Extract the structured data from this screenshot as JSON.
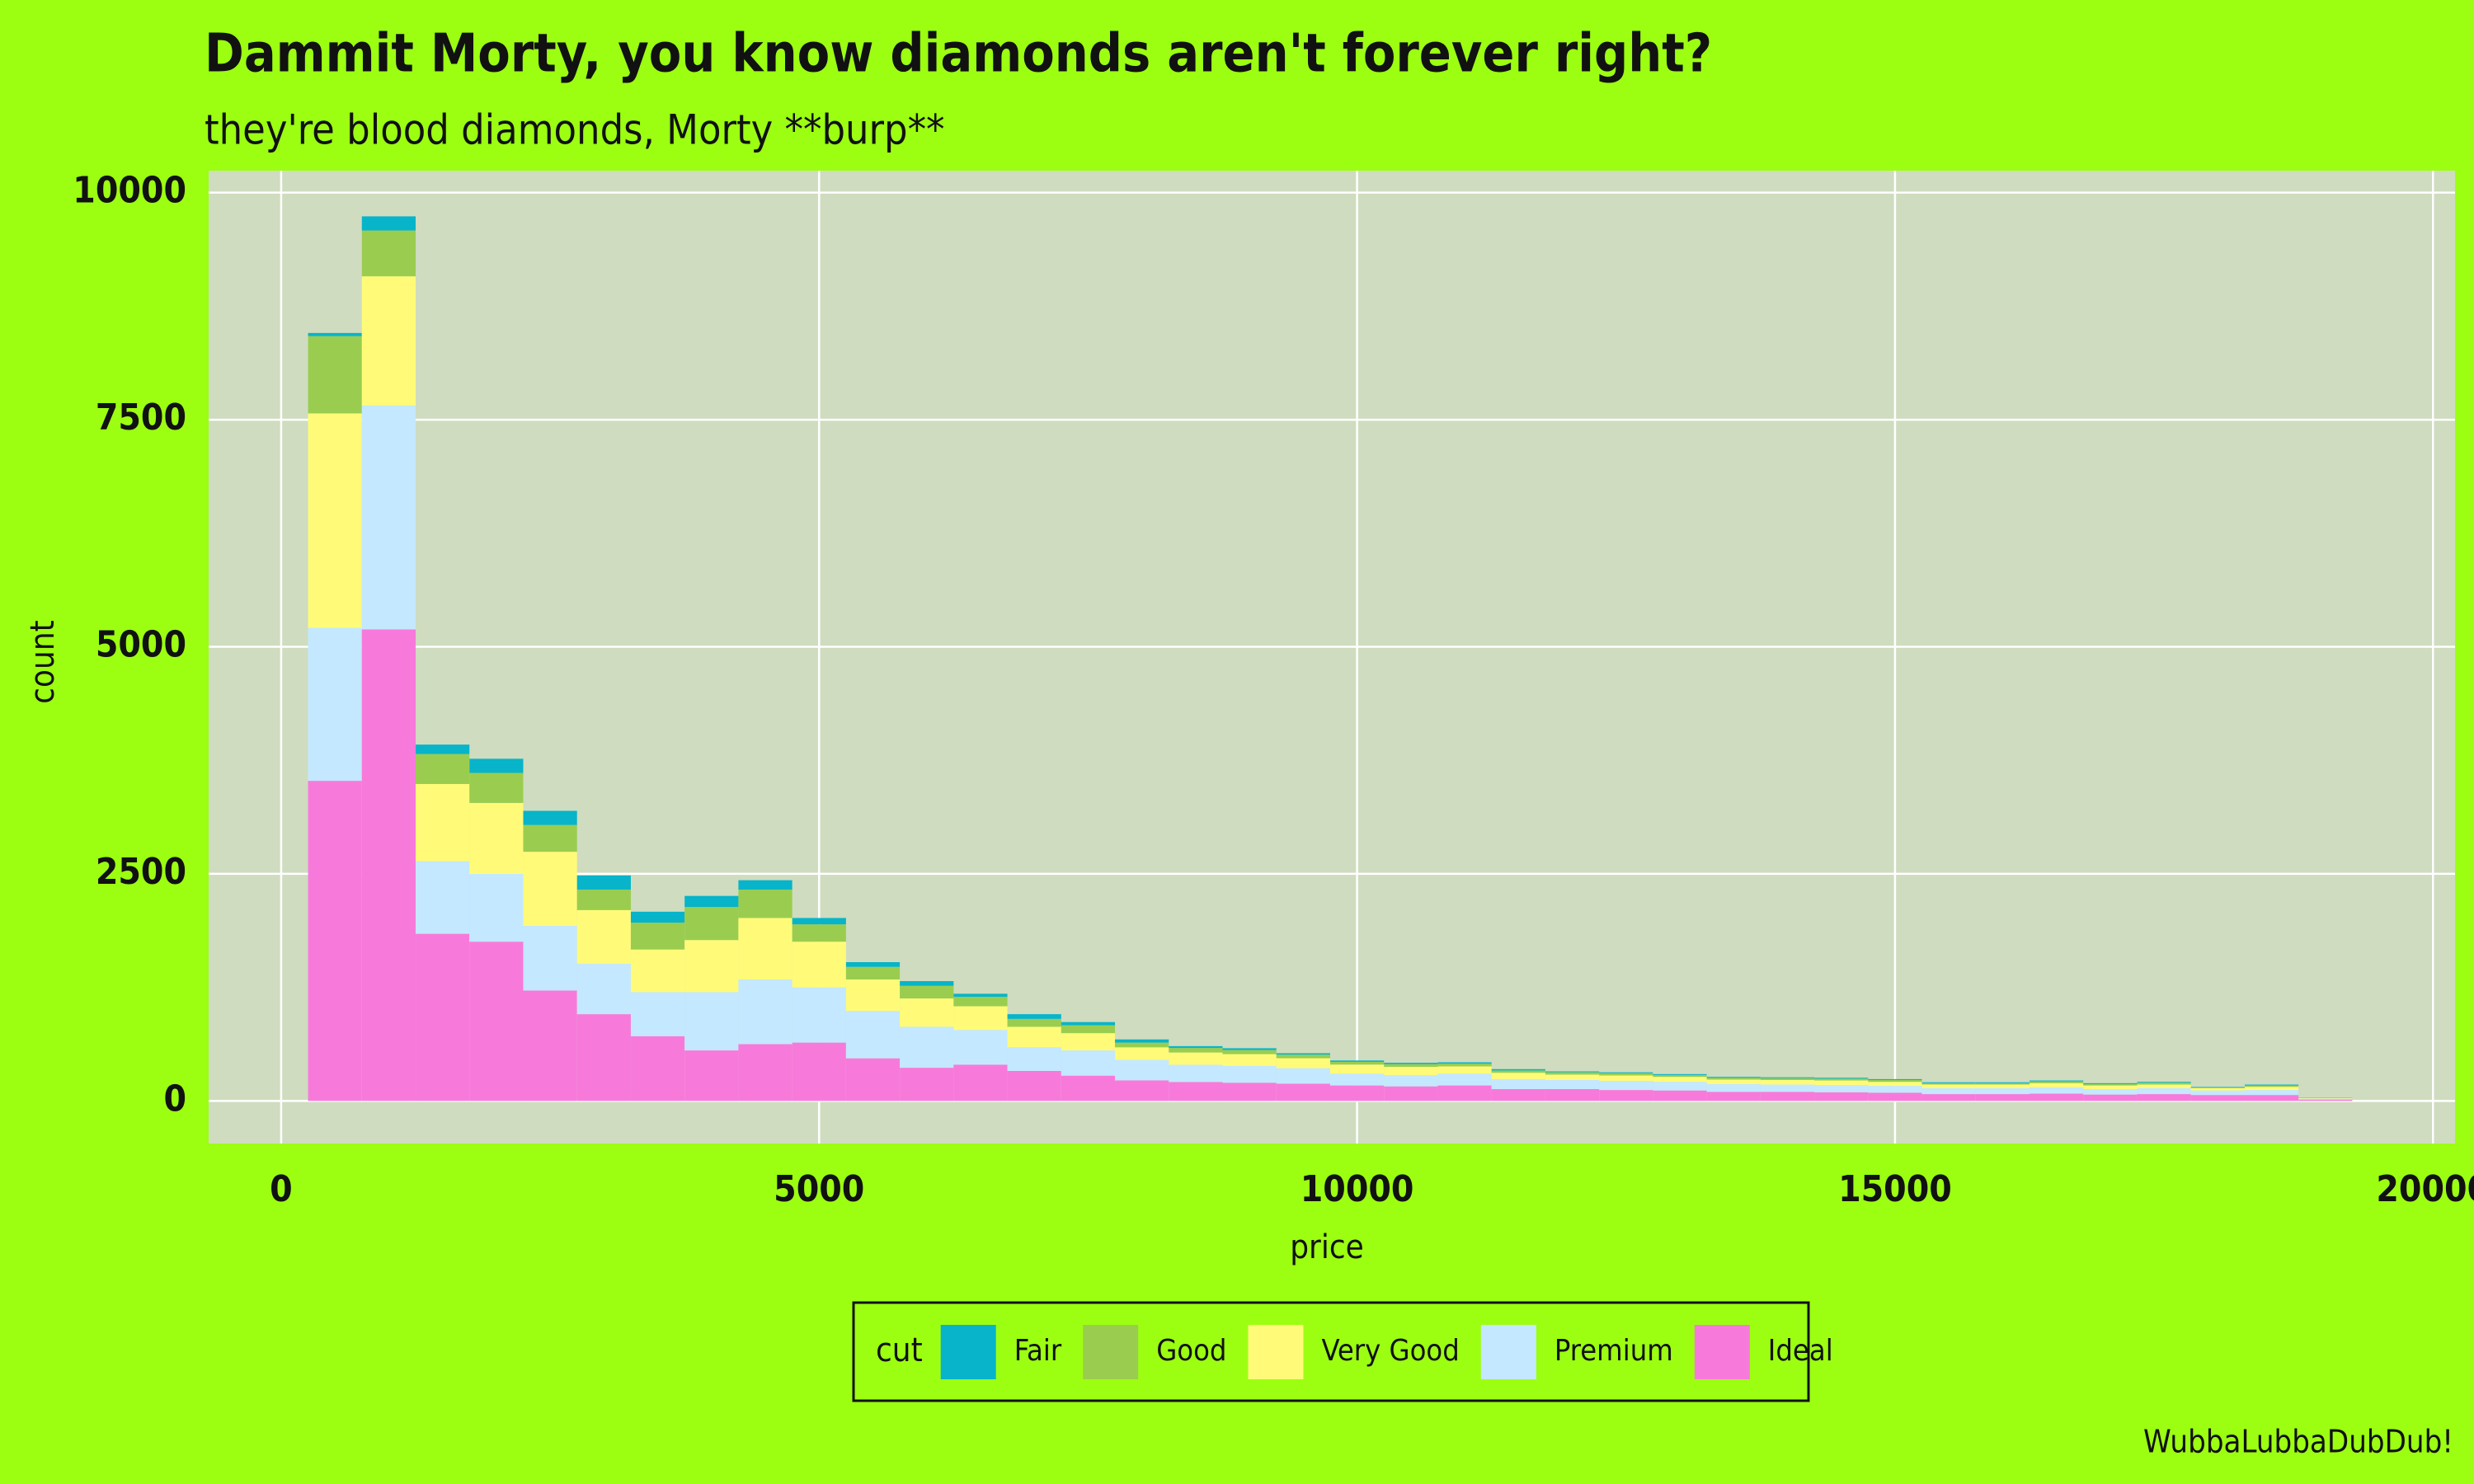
{
  "chart_data": {
    "type": "histogram",
    "title": "Dammit Morty, you know diamonds aren't forever right?",
    "subtitle": "they're blood diamonds, Morty **burp**",
    "caption": "WubbaLubbaDubDub!",
    "x_label": "price",
    "y_label": "count",
    "legend_title": "cut",
    "legend_position": "bottom",
    "stacked": true,
    "grid": true,
    "bins": [
      250,
      750,
      1250,
      1750,
      2250,
      2750,
      3250,
      3750,
      4250,
      4750,
      5250,
      5750,
      6250,
      6750,
      7250,
      7750,
      8250,
      8750,
      9250,
      9750,
      10250,
      10750,
      11250,
      11750,
      12250,
      12750,
      13250,
      13750,
      14250,
      14750,
      15250,
      15750,
      16250,
      16750,
      17250,
      17750,
      18250,
      18750,
      19250
    ],
    "series": [
      {
        "name": "Fair",
        "color": "#08b4c9",
        "values": [
          35,
          156,
          104,
          156,
          156,
          156,
          121,
          122,
          104,
          70,
          52,
          52,
          34,
          52,
          35,
          35,
          20,
          20,
          15,
          15,
          15,
          15,
          15,
          10,
          10,
          10,
          10,
          10,
          10,
          10,
          10,
          10,
          10,
          10,
          10,
          5,
          10,
          2
        ]
      },
      {
        "name": "Good",
        "color": "#9acd4f",
        "values": [
          851,
          504,
          330,
          330,
          295,
          225,
          295,
          364,
          312,
          191,
          139,
          139,
          104,
          87,
          87,
          52,
          50,
          45,
          40,
          30,
          30,
          30,
          25,
          25,
          25,
          20,
          20,
          20,
          20,
          20,
          15,
          15,
          20,
          15,
          20,
          10,
          15,
          3
        ]
      },
      {
        "name": "Very Good",
        "color": "#fffb78",
        "values": [
          2361,
          1423,
          850,
          781,
          816,
          591,
          469,
          573,
          677,
          503,
          347,
          312,
          261,
          226,
          190,
          139,
          135,
          130,
          110,
          100,
          90,
          80,
          70,
          60,
          60,
          55,
          50,
          50,
          50,
          45,
          40,
          40,
          45,
          40,
          40,
          25,
          35,
          5
        ]
      },
      {
        "name": "Premium",
        "color": "#c4e8ff",
        "values": [
          1684,
          2465,
          799,
          747,
          712,
          555,
          486,
          642,
          712,
          608,
          521,
          451,
          382,
          260,
          278,
          225,
          190,
          185,
          170,
          130,
          125,
          130,
          110,
          100,
          100,
          95,
          85,
          80,
          80,
          75,
          65,
          65,
          70,
          60,
          65,
          50,
          55,
          10
        ]
      },
      {
        "name": "Ideal",
        "color": "#f77adb",
        "values": [
          3524,
          5191,
          1840,
          1753,
          1215,
          955,
          712,
          556,
          625,
          642,
          469,
          365,
          399,
          330,
          278,
          226,
          208,
          200,
          190,
          170,
          160,
          170,
          130,
          130,
          120,
          115,
          100,
          100,
          95,
          90,
          75,
          75,
          80,
          70,
          75,
          65,
          65,
          15
        ]
      }
    ],
    "xlim": [
      -674,
      20205
    ],
    "xticks": [
      0,
      5000,
      10000,
      15000,
      20000
    ],
    "ylim": [
      -469,
      10242
    ],
    "yticks": [
      0,
      2500,
      5000,
      7500,
      10000
    ],
    "background_color": "#9cff12",
    "panel_color": "#cfdcc0"
  }
}
